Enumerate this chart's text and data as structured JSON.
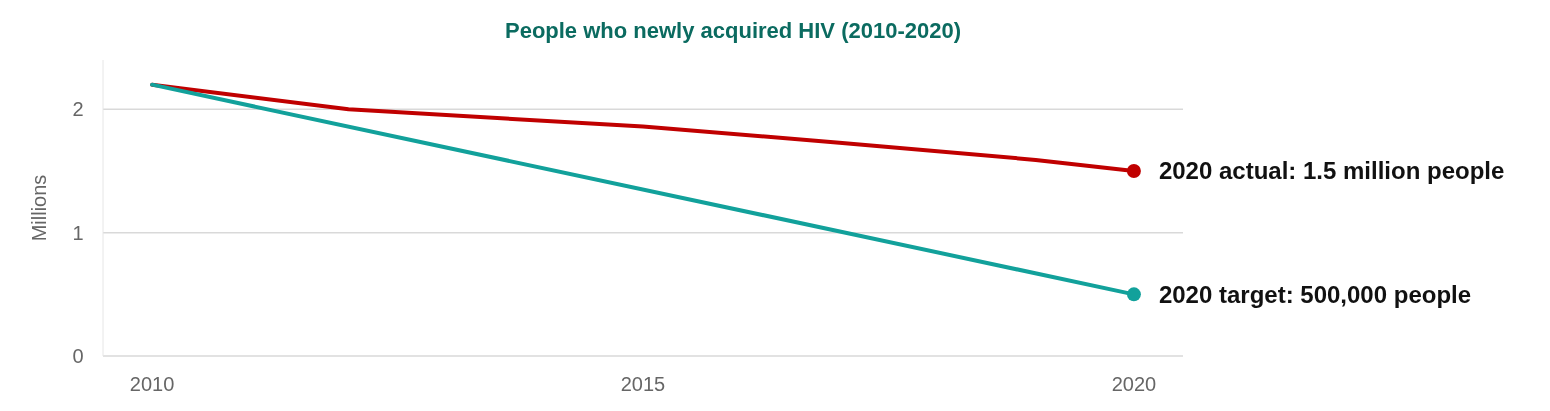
{
  "chart_data": {
    "type": "line",
    "title": "People who newly acquired HIV (2010-2020)",
    "ylabel": "Millions",
    "xlim": [
      2009.5,
      2020.5
    ],
    "xticks": [
      2010,
      2015,
      2020
    ],
    "ylim": [
      0,
      2.4
    ],
    "yticks": [
      0,
      1,
      2
    ],
    "grid": "y",
    "line_style": "solid",
    "series": [
      {
        "color": "#c00000",
        "x": [
          2010,
          2012,
          2015,
          2017,
          2019,
          2020
        ],
        "values": [
          2.2,
          2.0,
          1.86,
          1.73,
          1.59,
          1.5
        ]
      },
      {
        "color": "#12a19b",
        "x": [
          2010,
          2020
        ],
        "values": [
          2.2,
          0.5
        ]
      }
    ],
    "annotations": [
      {
        "text": "2020 actual: 1.5 million people",
        "x": 2020,
        "y": 1.5
      },
      {
        "text": "2020 target: 500,000 people",
        "x": 2020,
        "y": 0.5
      }
    ]
  }
}
